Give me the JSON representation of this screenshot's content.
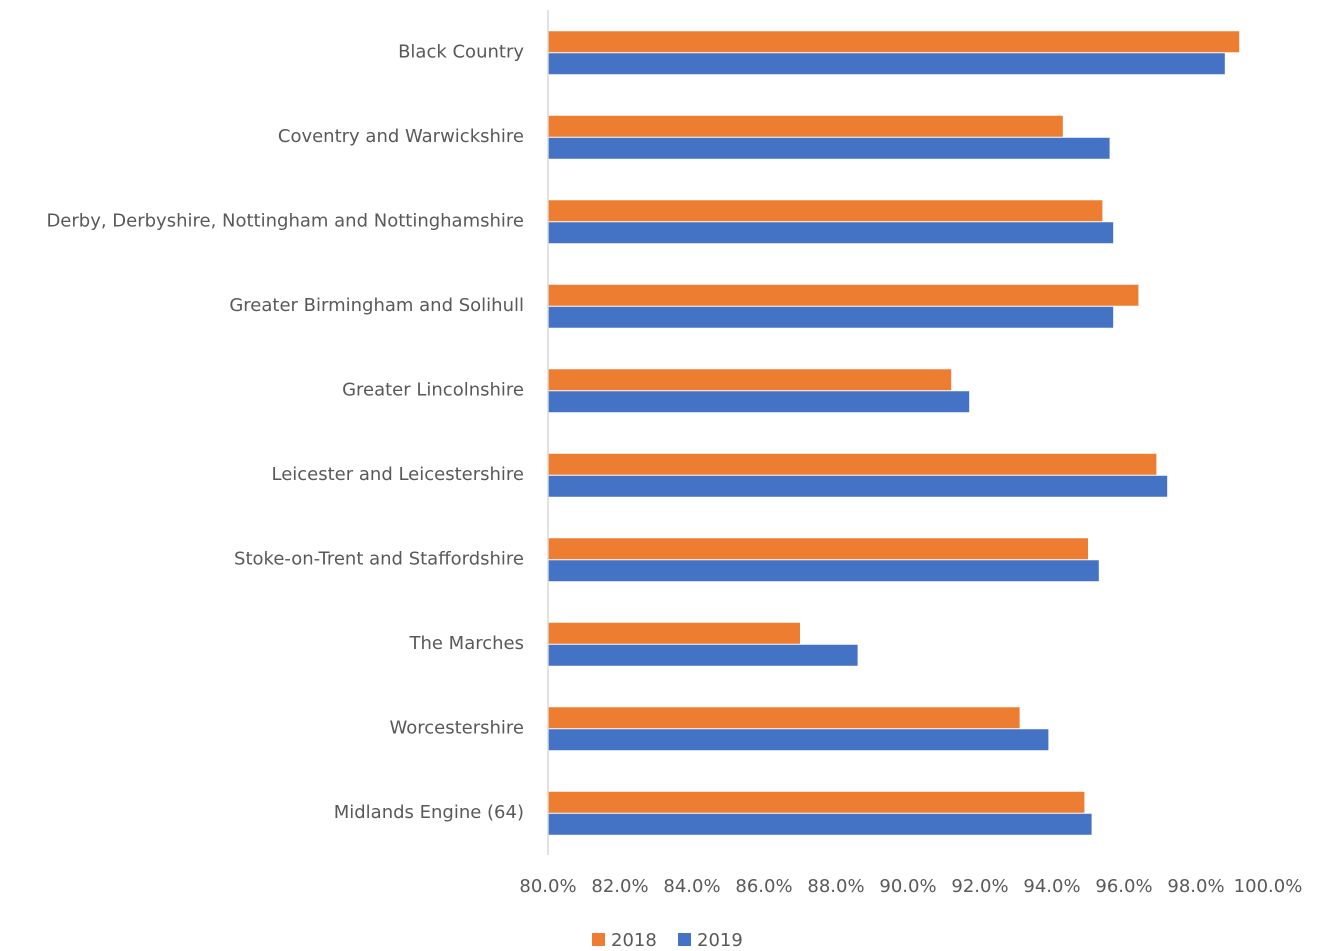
{
  "chart_data": {
    "type": "hbar",
    "categories": [
      "Black Country",
      "Coventry and Warwickshire",
      "Derby, Derbyshire, Nottingham and Nottinghamshire",
      "Greater Birmingham and Solihull",
      "Greater Lincolnshire",
      "Leicester and Leicestershire",
      "Stoke-on-Trent and Staffordshire",
      "The Marches",
      "Worcestershire",
      "Midlands Engine (64)"
    ],
    "series": [
      {
        "name": "2018",
        "color": "#ed7d31",
        "values": [
          99.2,
          94.3,
          95.4,
          96.4,
          91.2,
          96.9,
          95.0,
          87.0,
          93.1,
          94.9
        ]
      },
      {
        "name": "2019",
        "color": "#4472c4",
        "values": [
          98.8,
          95.6,
          95.7,
          95.7,
          91.7,
          97.2,
          95.3,
          88.6,
          93.9,
          95.1
        ]
      }
    ],
    "xlim": [
      80,
      100
    ],
    "xticks": [
      {
        "value": 80,
        "label": "80.0%"
      },
      {
        "value": 82,
        "label": "82.0%"
      },
      {
        "value": 84,
        "label": "84.0%"
      },
      {
        "value": 86,
        "label": "86.0%"
      },
      {
        "value": 88,
        "label": "88.0%"
      },
      {
        "value": 90,
        "label": "90.0%"
      },
      {
        "value": 92,
        "label": "92.0%"
      },
      {
        "value": 94,
        "label": "94.0%"
      },
      {
        "value": 96,
        "label": "96.0%"
      },
      {
        "value": 98,
        "label": "98.0%"
      },
      {
        "value": 100,
        "label": "100.0%"
      }
    ],
    "grid": false,
    "legend": "bottom"
  }
}
